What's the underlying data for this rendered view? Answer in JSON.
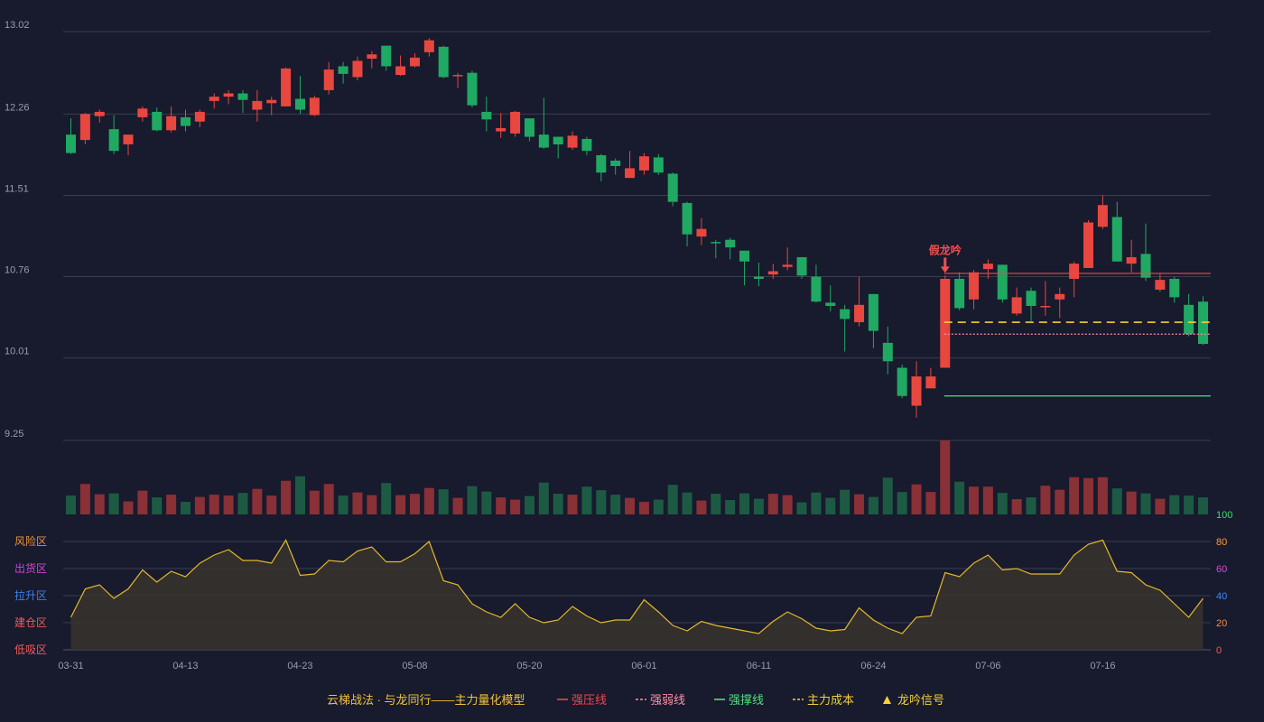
{
  "colors": {
    "background": "#181a2d",
    "up": "#e8473f",
    "down": "#20a963",
    "volume_up": "#8a3037",
    "volume_down": "#1d5a44",
    "grid": "#3a3d4f",
    "axis_text": "#9a9db0",
    "indicator_line": "#e3b92a",
    "indicator_fill": "#38342e",
    "strong_pressure": "#f0484a",
    "strong_weak": "#ff8fa8",
    "strong_support": "#4fe07a",
    "main_cost": "#f5d03a",
    "signal": "#f05050"
  },
  "chart_data": {
    "type": "candlestick",
    "price_axis": {
      "ticks": [
        "13.02",
        "12.26",
        "11.51",
        "10.76",
        "10.01",
        "9.25"
      ],
      "range": [
        9.25,
        13.02
      ]
    },
    "x_ticks": [
      {
        "label": "03-31",
        "index": 0
      },
      {
        "label": "04-13",
        "index": 8
      },
      {
        "label": "04-23",
        "index": 16
      },
      {
        "label": "05-08",
        "index": 24
      },
      {
        "label": "05-20",
        "index": 32
      },
      {
        "label": "06-01",
        "index": 40
      },
      {
        "label": "06-11",
        "index": 48
      },
      {
        "label": "06-24",
        "index": 56
      },
      {
        "label": "07-06",
        "index": 64
      },
      {
        "label": "07-16",
        "index": 72
      }
    ],
    "candles": [
      [
        12.07,
        11.9,
        12.22,
        11.89
      ],
      [
        12.02,
        12.26,
        12.27,
        11.98
      ],
      [
        12.24,
        12.28,
        12.3,
        12.18
      ],
      [
        12.12,
        11.92,
        12.25,
        11.89
      ],
      [
        11.98,
        12.07,
        12.07,
        11.88
      ],
      [
        12.23,
        12.31,
        12.33,
        12.19
      ],
      [
        12.28,
        12.11,
        12.32,
        12.1
      ],
      [
        12.11,
        12.24,
        12.33,
        12.09
      ],
      [
        12.23,
        12.15,
        12.3,
        12.1
      ],
      [
        12.19,
        12.28,
        12.3,
        12.14
      ],
      [
        12.38,
        12.42,
        12.45,
        12.31
      ],
      [
        12.42,
        12.45,
        12.48,
        12.35
      ],
      [
        12.45,
        12.39,
        12.48,
        12.27
      ],
      [
        12.3,
        12.38,
        12.48,
        12.19
      ],
      [
        12.36,
        12.39,
        12.42,
        12.25
      ],
      [
        12.33,
        12.68,
        12.69,
        12.33
      ],
      [
        12.4,
        12.3,
        12.61,
        12.26
      ],
      [
        12.25,
        12.41,
        12.43,
        12.24
      ],
      [
        12.48,
        12.67,
        12.74,
        12.44
      ],
      [
        12.7,
        12.63,
        12.74,
        12.54
      ],
      [
        12.6,
        12.75,
        12.79,
        12.57
      ],
      [
        12.77,
        12.81,
        12.84,
        12.68
      ],
      [
        12.89,
        12.7,
        12.89,
        12.66
      ],
      [
        12.62,
        12.7,
        12.8,
        12.61
      ],
      [
        12.7,
        12.78,
        12.82,
        12.69
      ],
      [
        12.83,
        12.94,
        12.96,
        12.79
      ],
      [
        12.88,
        12.6,
        12.89,
        12.59
      ],
      [
        12.62,
        12.62,
        12.64,
        12.5
      ],
      [
        12.64,
        12.34,
        12.66,
        12.32
      ],
      [
        12.28,
        12.21,
        12.42,
        12.1
      ],
      [
        12.1,
        12.13,
        12.27,
        12.04
      ],
      [
        12.08,
        12.28,
        12.29,
        12.05
      ],
      [
        12.22,
        12.05,
        12.22,
        12.01
      ],
      [
        12.07,
        11.95,
        12.41,
        11.94
      ],
      [
        12.05,
        11.98,
        12.05,
        11.85
      ],
      [
        11.95,
        12.06,
        12.1,
        11.93
      ],
      [
        12.03,
        11.92,
        12.05,
        11.88
      ],
      [
        11.88,
        11.72,
        11.89,
        11.64
      ],
      [
        11.83,
        11.78,
        11.85,
        11.7
      ],
      [
        11.67,
        11.76,
        11.92,
        11.67
      ],
      [
        11.74,
        11.87,
        11.9,
        11.7
      ],
      [
        11.86,
        11.72,
        11.89,
        11.7
      ],
      [
        11.71,
        11.45,
        11.72,
        11.41
      ],
      [
        11.44,
        11.15,
        11.45,
        11.04
      ],
      [
        11.13,
        11.2,
        11.3,
        11.05
      ],
      [
        11.08,
        11.07,
        11.1,
        10.93
      ],
      [
        11.1,
        11.03,
        11.12,
        10.92
      ],
      [
        11.0,
        10.9,
        11.0,
        10.68
      ],
      [
        10.76,
        10.74,
        10.89,
        10.67
      ],
      [
        10.78,
        10.81,
        10.88,
        10.74
      ],
      [
        10.85,
        10.87,
        11.03,
        10.82
      ],
      [
        10.94,
        10.77,
        10.94,
        10.74
      ],
      [
        10.76,
        10.53,
        10.87,
        10.52
      ],
      [
        10.52,
        10.49,
        10.68,
        10.44
      ],
      [
        10.46,
        10.37,
        10.5,
        10.07
      ],
      [
        10.34,
        10.5,
        10.76,
        10.3
      ],
      [
        10.6,
        10.26,
        10.6,
        10.1
      ],
      [
        10.15,
        9.98,
        10.3,
        9.86
      ],
      [
        9.92,
        9.66,
        9.95,
        9.64
      ],
      [
        9.57,
        9.84,
        9.98,
        9.46
      ],
      [
        9.73,
        9.84,
        9.92,
        9.73
      ],
      [
        9.92,
        10.74,
        10.77,
        9.92
      ],
      [
        10.74,
        10.47,
        10.8,
        10.45
      ],
      [
        10.55,
        10.8,
        10.82,
        10.46
      ],
      [
        10.83,
        10.88,
        10.92,
        10.74
      ],
      [
        10.87,
        10.55,
        10.87,
        10.52
      ],
      [
        10.42,
        10.57,
        10.66,
        10.4
      ],
      [
        10.63,
        10.49,
        10.66,
        10.35
      ],
      [
        10.48,
        10.49,
        10.72,
        10.4
      ],
      [
        10.55,
        10.6,
        10.66,
        10.38
      ],
      [
        10.74,
        10.88,
        10.9,
        10.57
      ],
      [
        10.84,
        11.26,
        11.28,
        10.84
      ],
      [
        11.22,
        11.42,
        11.51,
        11.2
      ],
      [
        11.31,
        10.9,
        11.45,
        10.9
      ],
      [
        10.88,
        10.94,
        11.1,
        10.8
      ],
      [
        10.97,
        10.75,
        11.25,
        10.72
      ],
      [
        10.64,
        10.73,
        10.79,
        10.62
      ],
      [
        10.74,
        10.57,
        10.76,
        10.52
      ],
      [
        10.5,
        10.23,
        10.6,
        10.21
      ],
      [
        10.53,
        10.14,
        10.58,
        10.13
      ]
    ],
    "volume": [
      4.2,
      6.8,
      4.5,
      4.7,
      2.9,
      5.3,
      3.8,
      4.4,
      2.8,
      3.9,
      4.4,
      4.2,
      4.8,
      5.7,
      4.2,
      7.5,
      8.5,
      5.3,
      6.8,
      4.2,
      4.9,
      4.3,
      7.0,
      4.3,
      4.6,
      5.9,
      5.6,
      3.7,
      6.3,
      5.1,
      3.8,
      3.3,
      4.1,
      7.1,
      4.6,
      4.4,
      6.2,
      5.4,
      4.4,
      3.7,
      2.8,
      3.3,
      6.6,
      4.9,
      3.1,
      4.6,
      3.2,
      4.7,
      3.5,
      4.6,
      4.3,
      2.7,
      4.9,
      3.7,
      5.5,
      4.5,
      3.9,
      8.2,
      5.0,
      6.7,
      5.0,
      16.5,
      7.3,
      6.2,
      6.2,
      4.8,
      3.4,
      3.8,
      6.4,
      5.5,
      8.3,
      8.1,
      8.3,
      5.8,
      5.1,
      4.7,
      3.5,
      4.3,
      4.2,
      3.8
    ],
    "indicator": {
      "axis_ticks": [
        "0",
        "20",
        "40",
        "60",
        "80",
        "100"
      ],
      "axis_tick_colors": [
        "#ff5a5a",
        "#ff8c3a",
        "#3a8cff",
        "#d84cd8",
        "#ff9c3a",
        "#3ae070"
      ],
      "range": [
        0,
        100
      ],
      "zones": [
        {
          "label": "风险区",
          "value": 80,
          "color": "#e8953a"
        },
        {
          "label": "出货区",
          "value": 60,
          "color": "#d046d0"
        },
        {
          "label": "拉升区",
          "value": 40,
          "color": "#3a82ec"
        },
        {
          "label": "建仓区",
          "value": 20,
          "color": "#f05a5a"
        },
        {
          "label": "低吸区",
          "value": 0,
          "color": "#f05a5a"
        }
      ],
      "values": [
        24,
        45,
        48,
        38,
        45,
        59,
        50,
        58,
        54,
        64,
        70,
        74,
        66,
        66,
        64,
        81,
        55,
        56,
        66,
        65,
        73,
        76,
        65,
        65,
        71,
        80,
        51,
        48,
        34,
        28,
        24,
        34,
        24,
        20,
        22,
        32,
        25,
        20,
        22,
        22,
        37,
        28,
        18,
        14,
        21,
        18,
        16,
        14,
        12,
        21,
        28,
        23,
        16,
        14,
        15,
        31,
        22,
        16,
        12,
        24,
        25,
        57,
        54,
        64,
        70,
        59,
        60,
        56,
        56,
        56,
        70,
        78,
        81,
        58,
        57,
        48,
        44,
        34,
        24,
        38
      ]
    },
    "lines": [
      {
        "name": "强压线",
        "value": 10.79,
        "from_index": 61,
        "style": "solid"
      },
      {
        "name": "强弱线",
        "value": 10.23,
        "from_index": 61,
        "style": "dotted"
      },
      {
        "name": "强撑线",
        "value": 9.66,
        "from_index": 61,
        "style": "solid"
      },
      {
        "name": "主力成本",
        "value": 10.34,
        "from_index": 61,
        "style": "dashed"
      }
    ],
    "signal": {
      "label": "假龙吟",
      "index": 61
    }
  },
  "legend": {
    "title": "云梯战法 · 与龙同行——主力量化模型",
    "items": [
      {
        "label": "强压线",
        "marker": "—",
        "color": "#f0484a"
      },
      {
        "label": "强弱线",
        "marker": "---",
        "color": "#ff8fa8"
      },
      {
        "label": "强撑线",
        "marker": "—",
        "color": "#4fe07a"
      },
      {
        "label": "主力成本",
        "marker": "---",
        "color": "#f5d03a"
      },
      {
        "label": "龙吟信号",
        "marker": "▲",
        "color": "#f5d03a"
      }
    ]
  }
}
